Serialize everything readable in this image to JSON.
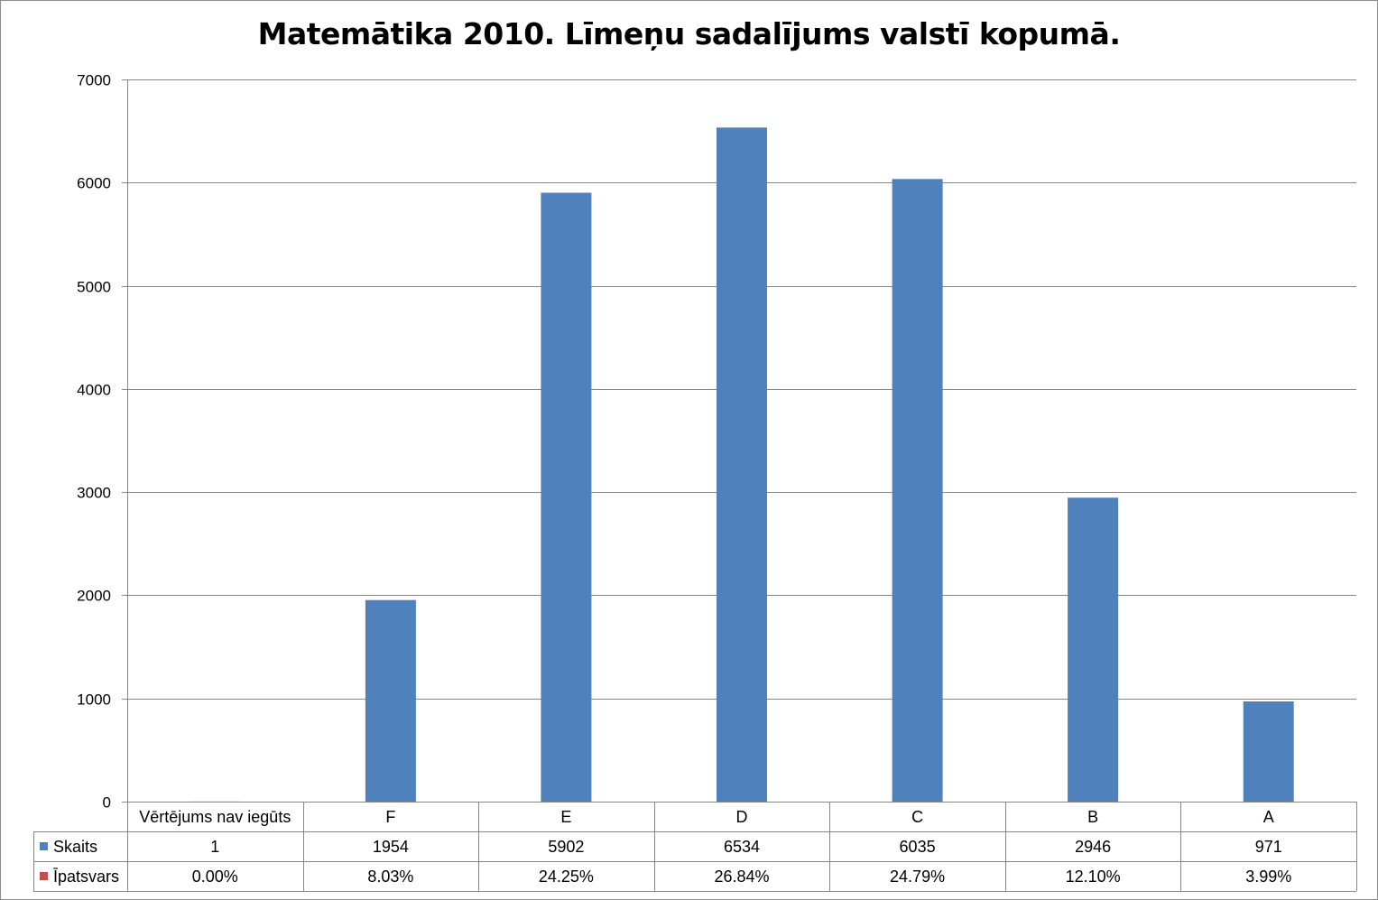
{
  "chart_data": {
    "type": "bar",
    "title": "Matemātika 2010. Līmeņu sadalījums valstī kopumā.",
    "categories": [
      "Vērtējums nav iegūts",
      "F",
      "E",
      "D",
      "C",
      "B",
      "A"
    ],
    "series": [
      {
        "name": "Skaits",
        "color": "#4f81bd",
        "values": [
          1,
          1954,
          5902,
          6534,
          6035,
          2946,
          971
        ]
      },
      {
        "name": "Īpatsvars",
        "color": "#c0504d",
        "values": [
          0.0,
          0.0803,
          0.2425,
          0.2684,
          0.2479,
          0.121,
          0.0399
        ],
        "table_labels": [
          "0.00%",
          "8.03%",
          "24.25%",
          "26.84%",
          "24.79%",
          "12.10%",
          "3.99%"
        ]
      }
    ],
    "ylim": [
      0,
      7000
    ],
    "yticks": [
      0,
      1000,
      2000,
      3000,
      4000,
      5000,
      6000,
      7000
    ],
    "grid": true,
    "legend": "data-table",
    "xlabel": "",
    "ylabel": ""
  }
}
